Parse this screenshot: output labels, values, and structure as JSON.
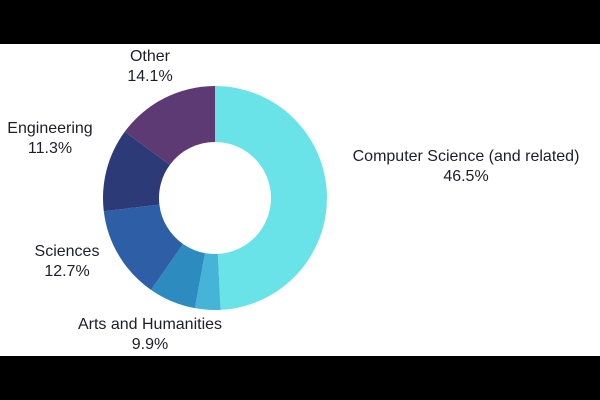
{
  "chart_data": {
    "type": "pie",
    "title": "",
    "donut": true,
    "start_angle_deg": 0,
    "direction": "clockwise",
    "slices": [
      {
        "label": "Computer Science (and related)",
        "value": 46.5,
        "display": "46.5%",
        "color": "#6ae3e8"
      },
      {
        "label": "Arts and Humanities",
        "value": 9.9,
        "display": "9.9%",
        "color": "#45b4d7",
        "sub_color": "#2e8bbf",
        "sub_split": 0.35
      },
      {
        "label": "Sciences",
        "value": 12.7,
        "display": "12.7%",
        "color": "#2d5ea6"
      },
      {
        "label": "Engineering",
        "value": 11.3,
        "display": "11.3%",
        "color": "#2c3a78"
      },
      {
        "label": "Other",
        "value": 14.1,
        "display": "14.1%",
        "color": "#5e3a74"
      }
    ],
    "legend": "none"
  }
}
